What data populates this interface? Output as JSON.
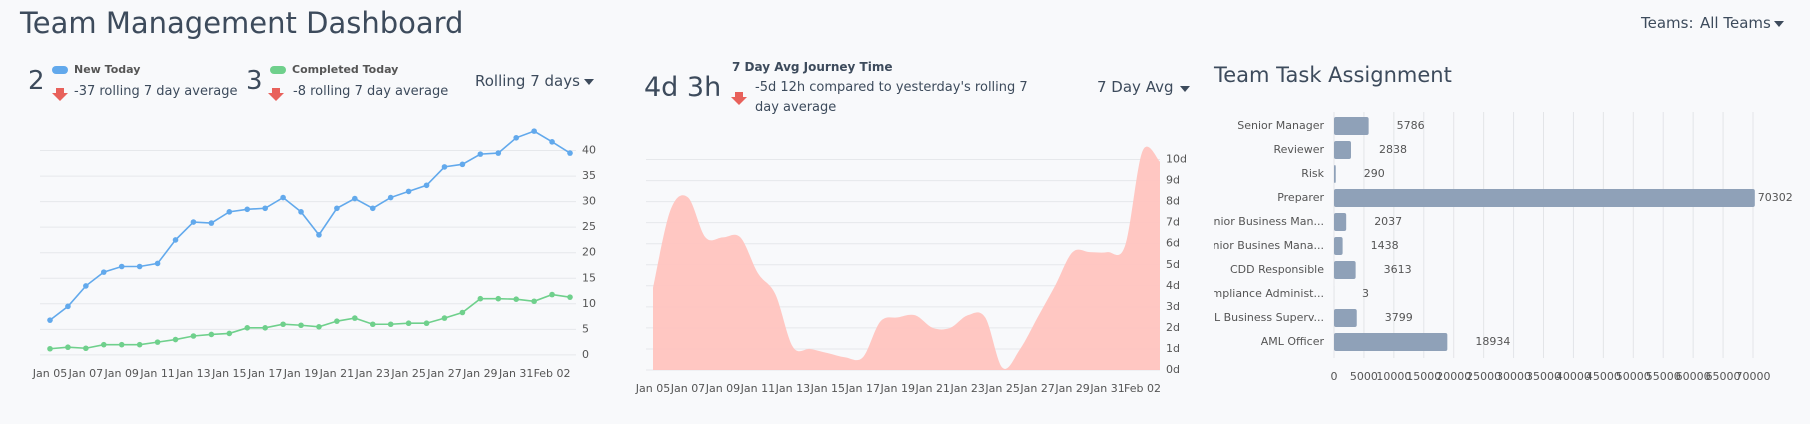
{
  "header": {
    "title": "Team Management Dashboard",
    "teams_label": "Teams:",
    "teams_value": "All Teams"
  },
  "kpis": [
    {
      "value": 2,
      "change": "-37 rolling 7 day average"
    },
    {
      "value": 3,
      "change": "-8 rolling 7 day average"
    },
    {
      "value": "4d 3h",
      "label": "7 Day Avg Journey Time",
      "change": "-5d 12h compared to yesterday's rolling 7 day average"
    }
  ],
  "periods": [
    "Rolling 7 days",
    "7 Day Avg"
  ],
  "chart_data": [
    {
      "type": "line",
      "x": [
        "Jan 05",
        null,
        "Jan 07",
        null,
        "Jan 09",
        null,
        "Jan 11",
        null,
        "Jan 13",
        null,
        "Jan 15",
        null,
        "Jan 17",
        null,
        "Jan 19",
        null,
        "Jan 21",
        null,
        "Jan 23",
        null,
        "Jan 25",
        null,
        "Jan 27",
        null,
        "Jan 29",
        null,
        "Jan 31",
        null,
        "Feb 02",
        null
      ],
      "series": [
        {
          "name": "New Today",
          "color": "#62a9ec",
          "values": [
            6.8,
            9.5,
            13.5,
            16.2,
            17.3,
            17.3,
            17.9,
            22.5,
            26,
            25.8,
            28,
            28.5,
            28.7,
            30.8,
            28,
            23.5,
            28.7,
            30.6,
            28.7,
            30.8,
            32,
            33.2,
            36.8,
            37.3,
            39.3,
            39.5,
            42.5,
            43.8,
            41.7,
            39.5
          ]
        },
        {
          "name": "Completed Today",
          "color": "#6fd08c",
          "values": [
            1.2,
            1.5,
            1.3,
            2,
            2,
            2,
            2.5,
            3,
            3.7,
            4,
            4.2,
            5.3,
            5.3,
            6,
            5.8,
            5.5,
            6.6,
            7.2,
            6,
            6,
            6.2,
            6.2,
            7.2,
            8.3,
            11,
            11,
            10.9,
            10.5,
            11.8,
            11.3
          ]
        }
      ],
      "ylim": [
        -1,
        45
      ],
      "yticks": [
        0,
        5,
        10,
        15,
        20,
        25,
        30,
        35,
        40
      ],
      "grid": true
    },
    {
      "type": "area",
      "x": [
        "Jan 05",
        null,
        "Jan 07",
        null,
        "Jan 09",
        null,
        "Jan 11",
        null,
        "Jan 13",
        null,
        "Jan 15",
        null,
        "Jan 17",
        null,
        "Jan 19",
        null,
        "Jan 21",
        null,
        "Jan 23",
        null,
        "Jan 25",
        null,
        "Jan 27",
        null,
        "Jan 29",
        null,
        "Jan 31",
        null,
        "Feb 02",
        null
      ],
      "values": [
        3.9,
        7.6,
        8.2,
        6.3,
        6.3,
        6.3,
        4.6,
        3.6,
        1.1,
        1.0,
        0.8,
        0.6,
        0.6,
        2.3,
        2.5,
        2.6,
        2.0,
        2.0,
        2.6,
        2.5,
        0.1,
        1.0,
        2.5,
        4.0,
        5.6,
        5.6,
        5.6,
        5.9,
        10.4,
        9.9
      ],
      "color": "#ffc4bf",
      "ylim": [
        0,
        10.5
      ],
      "yticks": [
        {
          "value": 0,
          "label": "0d"
        },
        {
          "value": 1,
          "label": "1d"
        },
        {
          "value": 2,
          "label": "2d"
        },
        {
          "value": 3,
          "label": "3d"
        },
        {
          "value": 4,
          "label": "4d"
        },
        {
          "value": 5,
          "label": "5d"
        },
        {
          "value": 6,
          "label": "6d"
        },
        {
          "value": 7,
          "label": "7d"
        },
        {
          "value": 8,
          "label": "8d"
        },
        {
          "value": 9,
          "label": "9d"
        },
        {
          "value": 10,
          "label": "10d"
        }
      ],
      "grid": true
    },
    {
      "type": "hbar",
      "title": "Team Task Assignment",
      "categories": [
        "Senior Manager",
        "Reviewer",
        "Risk",
        "Preparer",
        "Senior Business Man...",
        "Senior Busines Mana...",
        "CDD Responsible",
        "Compliance Administ...",
        "AML Business Superv...",
        "AML Officer"
      ],
      "values": [
        5786,
        2838,
        290,
        70302,
        2037,
        1438,
        3613,
        3,
        3799,
        18934
      ],
      "color": "#8fa1b8",
      "xlim": [
        0,
        70000
      ],
      "xticks": [
        0,
        5000,
        10000,
        15000,
        20000,
        25000,
        30000,
        35000,
        40000,
        45000,
        50000,
        55000,
        60000,
        65000,
        70000
      ],
      "grid": true
    }
  ]
}
